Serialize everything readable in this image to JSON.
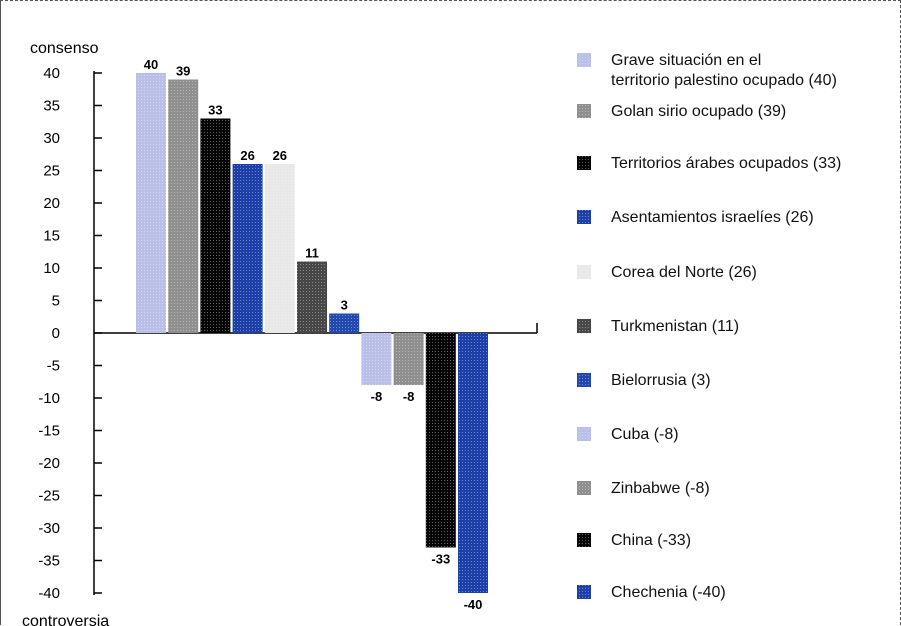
{
  "chart_data": {
    "type": "bar",
    "categories": [
      "Grave situación en el territorio palestino ocupado",
      "Golan sirio ocupado",
      "Territorios árabes ocupados",
      "Asentamientos israelíes",
      "Corea del Norte",
      "Turkmenistan",
      "Bielorrusia",
      "Cuba",
      "Zinbabwe",
      "China",
      "Chechenia"
    ],
    "values": [
      40,
      39,
      33,
      26,
      26,
      11,
      3,
      -8,
      -8,
      -33,
      -40
    ],
    "data_labels": [
      "40",
      "39",
      "33",
      "26",
      "26",
      "11",
      "3",
      "-8",
      "-8",
      "-33",
      "-40"
    ],
    "colors": [
      "#b9bfe6",
      "#8f8f8f",
      "#050505",
      "#1c3fa8",
      "#e8e8e8",
      "#474747",
      "#2249ad",
      "#b9bfe6",
      "#8f8f8f",
      "#050505",
      "#1c3fa8"
    ],
    "ylim": [
      -40,
      40
    ],
    "yticks": [
      "40",
      "35",
      "30",
      "25",
      "20",
      "15",
      "10",
      "5",
      "0",
      "-5",
      "-10",
      "-15",
      "-20",
      "-25",
      "-30",
      "-35",
      "-40"
    ],
    "ylabel_top": "consenso",
    "ylabel_bottom": "controversia",
    "legend": [
      {
        "line1": "Grave situación en el",
        "line2": "territorio palestino ocupado (40)"
      },
      {
        "line1": "Golan sirio ocupado (39)"
      },
      {
        "line1": "Territorios árabes ocupados (33)"
      },
      {
        "line1": "Asentamientos israelíes (26)"
      },
      {
        "line1": "Corea del Norte (26)"
      },
      {
        "line1": "Turkmenistan (11)"
      },
      {
        "line1": "Bielorrusia (3)"
      },
      {
        "line1": "Cuba (-8)"
      },
      {
        "line1": "Zinbabwe  (-8)"
      },
      {
        "line1": "China  (-33)"
      },
      {
        "line1": "Chechenia  (-40)"
      }
    ],
    "legend_position": "right"
  }
}
